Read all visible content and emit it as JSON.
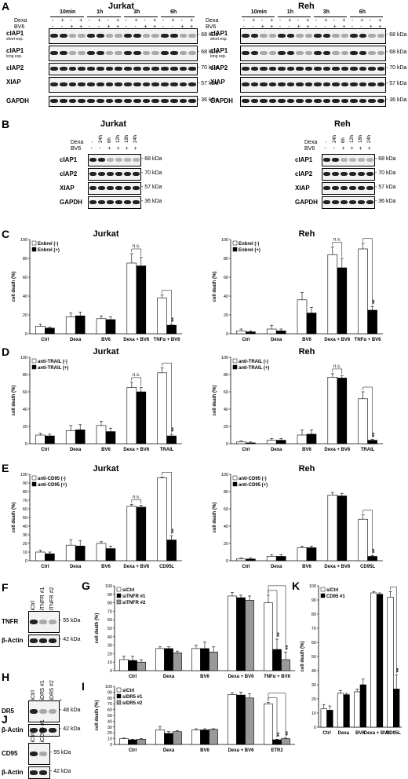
{
  "panels": {
    "A": {
      "label": "A",
      "left": {
        "title": "Jurkat",
        "times": [
          "10min",
          "1h",
          "3h",
          "6h"
        ],
        "treat_rows": [
          {
            "name": "Dexa",
            "marks": [
              "-",
              "+",
              "-",
              "+",
              "-",
              "+",
              "-",
              "+",
              "-",
              "+",
              "-",
              "+",
              "-",
              "+",
              "-",
              "+"
            ]
          },
          {
            "name": "BV6",
            "marks": [
              "-",
              "-",
              "+",
              "+",
              "-",
              "-",
              "+",
              "+",
              "-",
              "-",
              "+",
              "+",
              "-",
              "-",
              "+",
              "+"
            ]
          }
        ],
        "rows": [
          {
            "label": "cIAP1",
            "sub": "short exp.",
            "kda": "68 kDa"
          },
          {
            "label": "cIAP1",
            "sub": "long exp.",
            "kda": "68 kDa"
          },
          {
            "label": "cIAP2",
            "sub": "",
            "kda": "70 kDa"
          },
          {
            "label": "XIAP",
            "sub": "",
            "kda": "57 kDa"
          },
          {
            "label": "GAPDH",
            "sub": "",
            "kda": "36 kDa"
          }
        ]
      },
      "right": {
        "title": "Reh",
        "times": [
          "10min",
          "1h",
          "3h",
          "6h"
        ],
        "treat_rows": [
          {
            "name": "Dexa",
            "marks": [
              "-",
              "+",
              "-",
              "+",
              "-",
              "+",
              "-",
              "+",
              "-",
              "+",
              "-",
              "+",
              "-",
              "+",
              "-",
              "+"
            ]
          },
          {
            "name": "BV6",
            "marks": [
              "-",
              "-",
              "+",
              "+",
              "-",
              "-",
              "+",
              "+",
              "-",
              "-",
              "+",
              "+",
              "-",
              "-",
              "+",
              "+"
            ]
          }
        ],
        "rows": [
          {
            "label": "cIAP1",
            "sub": "short exp.",
            "kda": "68 kDa"
          },
          {
            "label": "cIAP1",
            "sub": "long exp.",
            "kda": "68 kDa"
          },
          {
            "label": "cIAP2",
            "sub": "",
            "kda": "70 kDa"
          },
          {
            "label": "XIAP",
            "sub": "",
            "kda": "57 kDa"
          },
          {
            "label": "GAPDH",
            "sub": "",
            "kda": "36 kDa"
          }
        ]
      }
    },
    "B": {
      "label": "B",
      "left": {
        "title": "Jurkat",
        "dexa_label": "Dexa",
        "times": [
          "-",
          "24h",
          "6h",
          "12h",
          "18h",
          "24h"
        ],
        "bv6_label": "BV6",
        "bv6_marks": [
          "-",
          "-",
          "+",
          "+",
          "+",
          "+"
        ],
        "rows": [
          {
            "label": "cIAP1",
            "kda": "68 kDa"
          },
          {
            "label": "cIAP2",
            "kda": "70 kDa"
          },
          {
            "label": "XIAP",
            "kda": "57 kDa"
          },
          {
            "label": "GAPDH",
            "kda": "36 kDa"
          }
        ]
      },
      "right": {
        "title": "Reh",
        "dexa_label": "Dexa",
        "times": [
          "-",
          "24h",
          "6h",
          "12h",
          "18h",
          "24h"
        ],
        "bv6_label": "BV6",
        "bv6_marks": [
          "-",
          "-",
          "+",
          "+",
          "+",
          "+"
        ],
        "rows": [
          {
            "label": "cIAP1",
            "kda": "68 kDa"
          },
          {
            "label": "cIAP2",
            "kda": "70 kDa"
          },
          {
            "label": "XIAP",
            "kda": "57 kDa"
          },
          {
            "label": "GAPDH",
            "kda": "36 kDa"
          }
        ]
      }
    },
    "C_label": "C",
    "D_label": "D",
    "E_label": "E",
    "F": {
      "label": "F",
      "lanes": [
        "siCtrl",
        "siTNFR #1",
        "siTNFR #2"
      ],
      "rows": [
        {
          "label": "TNFR",
          "kda": "55 kDa"
        },
        {
          "label": "β-Actin",
          "kda": "42 kDa"
        }
      ]
    },
    "H": {
      "label": "H",
      "lanes": [
        "siCtrl",
        "siDR5 #1",
        "siDR5 #2"
      ],
      "rows": [
        {
          "label": "DR5",
          "kda": "48 kDa"
        },
        {
          "label": "β-Actin",
          "kda": "42 kDa"
        }
      ],
      "star": "*"
    },
    "J": {
      "label": "J",
      "lanes": [
        "siCtrl",
        "siCD95 #1"
      ],
      "rows": [
        {
          "label": "CD95",
          "kda": "55 kDa"
        },
        {
          "label": "β-Actin",
          "kda": "42 kDa"
        }
      ]
    },
    "G_label": "G",
    "I_label": "I",
    "K_label": "K"
  },
  "chart_data": [
    {
      "id": "C-left",
      "type": "bar",
      "title": "Jurkat",
      "ylabel": "cell death (%)",
      "ylim": [
        0,
        100
      ],
      "yticks": [
        0,
        20,
        40,
        60,
        80,
        100
      ],
      "categories": [
        "Ctrl",
        "Dexa",
        "BV6",
        "Dexa + BV6",
        "TNFα + BV6"
      ],
      "series": [
        {
          "name": "Enbrel (-)",
          "fill": "#ffffff",
          "values": [
            8,
            18,
            16,
            75,
            38
          ],
          "err": [
            2,
            4,
            3,
            10,
            3
          ]
        },
        {
          "name": "Enbrel (+)",
          "fill": "#000000",
          "values": [
            6,
            19,
            15,
            72,
            9
          ],
          "err": [
            1,
            4,
            3,
            9,
            1
          ]
        }
      ],
      "annotations": [
        {
          "text": "n.s.",
          "between": 3
        },
        {
          "text": "**",
          "between": 4
        }
      ]
    },
    {
      "id": "C-right",
      "type": "bar",
      "title": "Reh",
      "ylabel": "cell death (%)",
      "ylim": [
        0,
        100
      ],
      "yticks": [
        0,
        20,
        40,
        60,
        80,
        100
      ],
      "categories": [
        "Ctrl",
        "Dexa",
        "BV6",
        "Dexa + BV6",
        "TNFα + BV6"
      ],
      "series": [
        {
          "name": "Enbrel (-)",
          "fill": "#ffffff",
          "values": [
            3,
            5,
            36,
            84,
            90
          ],
          "err": [
            2,
            4,
            8,
            8,
            6
          ]
        },
        {
          "name": "Enbrel (+)",
          "fill": "#000000",
          "values": [
            2,
            3,
            22,
            70,
            25
          ],
          "err": [
            1,
            2,
            6,
            10,
            4
          ]
        }
      ],
      "annotations": [
        {
          "text": "n.s.",
          "between": 3
        },
        {
          "text": "**",
          "between": 4
        }
      ]
    },
    {
      "id": "D-left",
      "type": "bar",
      "title": "Jurkat",
      "ylabel": "cell death (%)",
      "ylim": [
        0,
        100
      ],
      "yticks": [
        0,
        20,
        40,
        60,
        80,
        100
      ],
      "categories": [
        "Ctrl",
        "Dexa",
        "BV6",
        "Dexa + BV6",
        "TRAIL"
      ],
      "series": [
        {
          "name": "anti-TRAIL (-)",
          "fill": "#ffffff",
          "values": [
            10,
            15,
            21,
            65,
            82
          ],
          "err": [
            2,
            6,
            5,
            6,
            6
          ]
        },
        {
          "name": "anti-TRAIL (+)",
          "fill": "#000000",
          "values": [
            9,
            16,
            14,
            60,
            9
          ],
          "err": [
            2,
            6,
            4,
            5,
            2
          ]
        }
      ],
      "annotations": [
        {
          "text": "n.s.",
          "between": 3
        },
        {
          "text": "**",
          "between": 4
        }
      ]
    },
    {
      "id": "D-right",
      "type": "bar",
      "title": "Reh",
      "ylabel": "cell death (%)",
      "ylim": [
        0,
        100
      ],
      "yticks": [
        0,
        20,
        40,
        60,
        80,
        100
      ],
      "categories": [
        "Ctrl",
        "Dexa",
        "BV6",
        "Dexa + BV6",
        "TRAIL"
      ],
      "series": [
        {
          "name": "anti-TRAIL (-)",
          "fill": "#ffffff",
          "values": [
            2,
            4,
            10,
            77,
            52
          ],
          "err": [
            1,
            2,
            6,
            4,
            8
          ]
        },
        {
          "name": "anti-TRAIL (+)",
          "fill": "#000000",
          "values": [
            1,
            4,
            11,
            76,
            4
          ],
          "err": [
            1,
            2,
            5,
            3,
            1
          ]
        }
      ],
      "annotations": [
        {
          "text": "n.s.",
          "between": 3
        },
        {
          "text": "**",
          "between": 4
        }
      ]
    },
    {
      "id": "E-left",
      "type": "bar",
      "title": "Jurkat",
      "ylabel": "cell death (%)",
      "ylim": [
        0,
        100
      ],
      "yticks": [
        0,
        10,
        20,
        30,
        40,
        50,
        60,
        70,
        80,
        90,
        100
      ],
      "categories": [
        "Ctrl",
        "Dexa",
        "BV6",
        "Dexa + BV6",
        "CD95L"
      ],
      "series": [
        {
          "name": "anti-CD95 (-)",
          "fill": "#ffffff",
          "values": [
            10,
            18,
            20,
            63,
            96
          ],
          "err": [
            2,
            6,
            2,
            2,
            1
          ]
        },
        {
          "name": "anti-CD95 (+)",
          "fill": "#000000",
          "values": [
            8,
            17,
            14,
            62,
            24
          ],
          "err": [
            2,
            6,
            3,
            2,
            5
          ]
        }
      ],
      "annotations": [
        {
          "text": "n.s.",
          "between": 3
        },
        {
          "text": "**",
          "between": 4
        }
      ]
    },
    {
      "id": "E-right",
      "type": "bar",
      "title": "Reh",
      "ylabel": "cell death (%)",
      "ylim": [
        0,
        100
      ],
      "yticks": [
        0,
        20,
        40,
        60,
        80,
        100
      ],
      "categories": [
        "Ctrl",
        "Dexa",
        "BV6",
        "Dexa + BV6",
        "CD95L"
      ],
      "series": [
        {
          "name": "anti-CD95 (-)",
          "fill": "#ffffff",
          "values": [
            2,
            5,
            15,
            76,
            48
          ],
          "err": [
            1,
            2,
            2,
            3,
            5
          ]
        },
        {
          "name": "anti-CD95 (+)",
          "fill": "#000000",
          "values": [
            2,
            5,
            15,
            75,
            5
          ],
          "err": [
            1,
            2,
            2,
            3,
            1
          ]
        }
      ],
      "annotations": [
        {
          "text": "**",
          "between": 4
        }
      ]
    },
    {
      "id": "G",
      "type": "bar",
      "title": "",
      "ylabel": "cell death (%)",
      "ylim": [
        0,
        100
      ],
      "yticks": [
        0,
        10,
        20,
        30,
        40,
        50,
        60,
        70,
        80,
        90,
        100
      ],
      "categories": [
        "Ctrl",
        "Dexa",
        "BV6",
        "Dexa + BV6",
        "TNFα + BV6"
      ],
      "series": [
        {
          "name": "siCtrl",
          "fill": "#ffffff",
          "values": [
            13,
            26,
            26,
            88,
            80
          ],
          "err": [
            4,
            2,
            4,
            4,
            9
          ]
        },
        {
          "name": "siTNFR #1",
          "fill": "#000000",
          "values": [
            12,
            26,
            26,
            86,
            25
          ],
          "err": [
            5,
            2,
            8,
            3,
            12
          ]
        },
        {
          "name": "siTNFR #2",
          "fill": "#999999",
          "values": [
            10,
            21,
            22,
            83,
            13
          ],
          "err": [
            3,
            2,
            6,
            5,
            9
          ]
        }
      ],
      "annotations": [
        {
          "text": "**",
          "between": 4
        },
        {
          "text": "**",
          "between": 4
        }
      ]
    },
    {
      "id": "I",
      "type": "bar",
      "title": "",
      "ylabel": "cell death (%)",
      "ylim": [
        0,
        100
      ],
      "yticks": [
        0,
        10,
        20,
        30,
        40,
        50,
        60,
        70,
        80,
        90,
        100
      ],
      "categories": [
        "Ctrl",
        "Dexa",
        "BV6",
        "Dexa + BV6",
        "ETR2"
      ],
      "series": [
        {
          "name": "siCtrl",
          "fill": "#ffffff",
          "values": [
            10,
            25,
            25,
            86,
            70
          ],
          "err": [
            1,
            6,
            2,
            3,
            2
          ]
        },
        {
          "name": "siDR5 #1",
          "fill": "#000000",
          "values": [
            8,
            19,
            25,
            85,
            8
          ],
          "err": [
            1,
            3,
            2,
            5,
            1
          ]
        },
        {
          "name": "siDR5 #2",
          "fill": "#999999",
          "values": [
            9,
            22,
            26,
            80,
            10
          ],
          "err": [
            1,
            2,
            1,
            7,
            1
          ]
        }
      ],
      "annotations": [
        {
          "text": "**",
          "between": 4
        },
        {
          "text": "**",
          "between": 4
        }
      ]
    },
    {
      "id": "K",
      "type": "bar",
      "title": "",
      "ylabel": "cell death (%)",
      "ylim": [
        0,
        100
      ],
      "yticks": [
        0,
        10,
        20,
        30,
        40,
        50,
        60,
        70,
        80,
        90,
        100
      ],
      "categories": [
        "Ctrl",
        "Dexa",
        "BV6",
        "Dexa + BV6",
        "CD95L"
      ],
      "series": [
        {
          "name": "siCtrl",
          "fill": "#ffffff",
          "values": [
            13,
            24,
            25,
            95,
            92
          ],
          "err": [
            3,
            2,
            2,
            1,
            4
          ]
        },
        {
          "name": "CD95 #1",
          "fill": "#000000",
          "values": [
            12,
            23,
            30,
            94,
            27
          ],
          "err": [
            3,
            1,
            4,
            1,
            10
          ]
        }
      ],
      "annotations": [
        {
          "text": "**",
          "between": 4
        }
      ]
    }
  ]
}
